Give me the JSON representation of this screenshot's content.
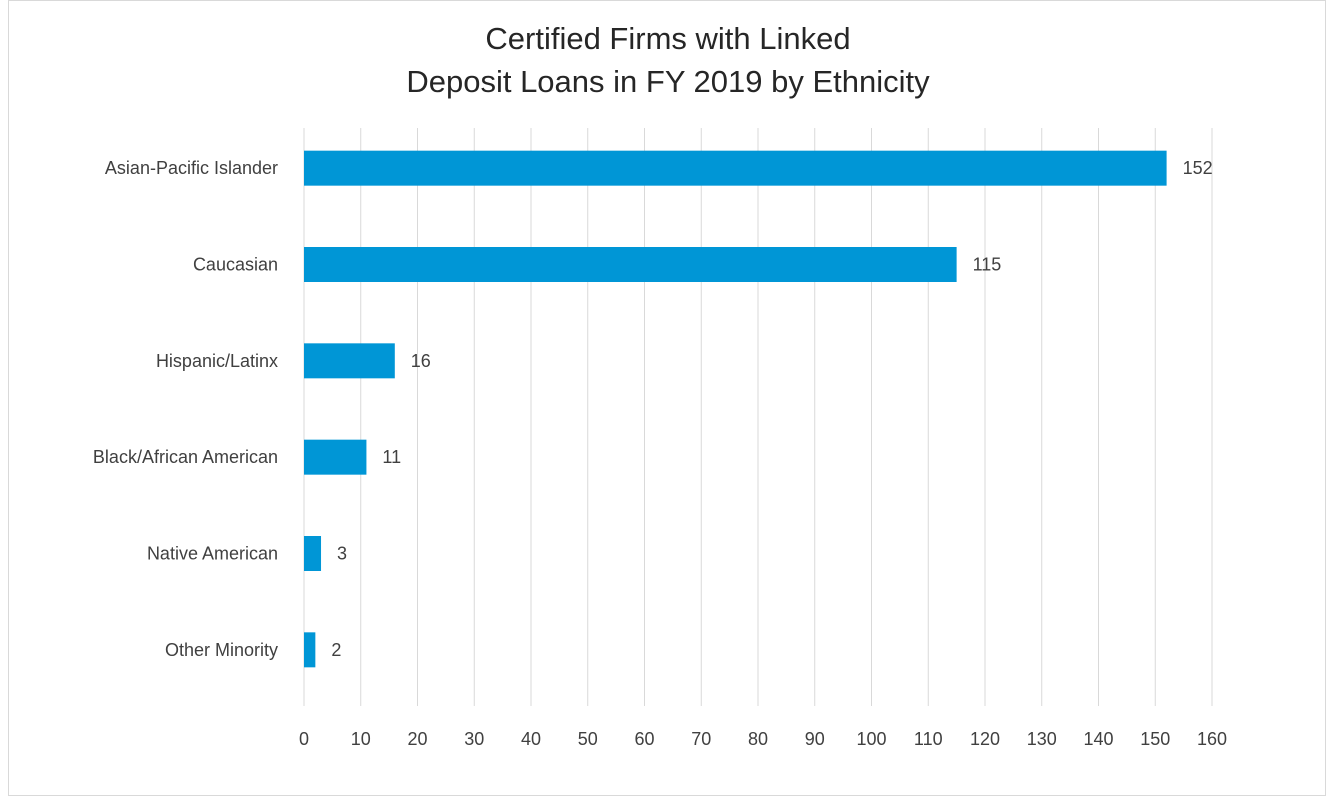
{
  "colors": {
    "bar": "#0096d6",
    "grid": "#d9d9d9",
    "text": "#404040",
    "title": "#262626"
  },
  "chart_data": {
    "type": "bar",
    "orientation": "horizontal",
    "title_lines": [
      "Certified Firms with Linked",
      "Deposit Loans in FY 2019 by Ethnicity"
    ],
    "categories": [
      "Asian-Pacific Islander",
      "Caucasian",
      "Hispanic/Latinx",
      "Black/African American",
      "Native American",
      "Other Minority"
    ],
    "values": [
      152,
      115,
      16,
      11,
      3,
      2
    ],
    "xlim": [
      0,
      160
    ],
    "xticks": [
      0,
      10,
      20,
      30,
      40,
      50,
      60,
      70,
      80,
      90,
      100,
      110,
      120,
      130,
      140,
      150,
      160
    ],
    "grid": true,
    "data_labels": true,
    "legend": "none"
  }
}
